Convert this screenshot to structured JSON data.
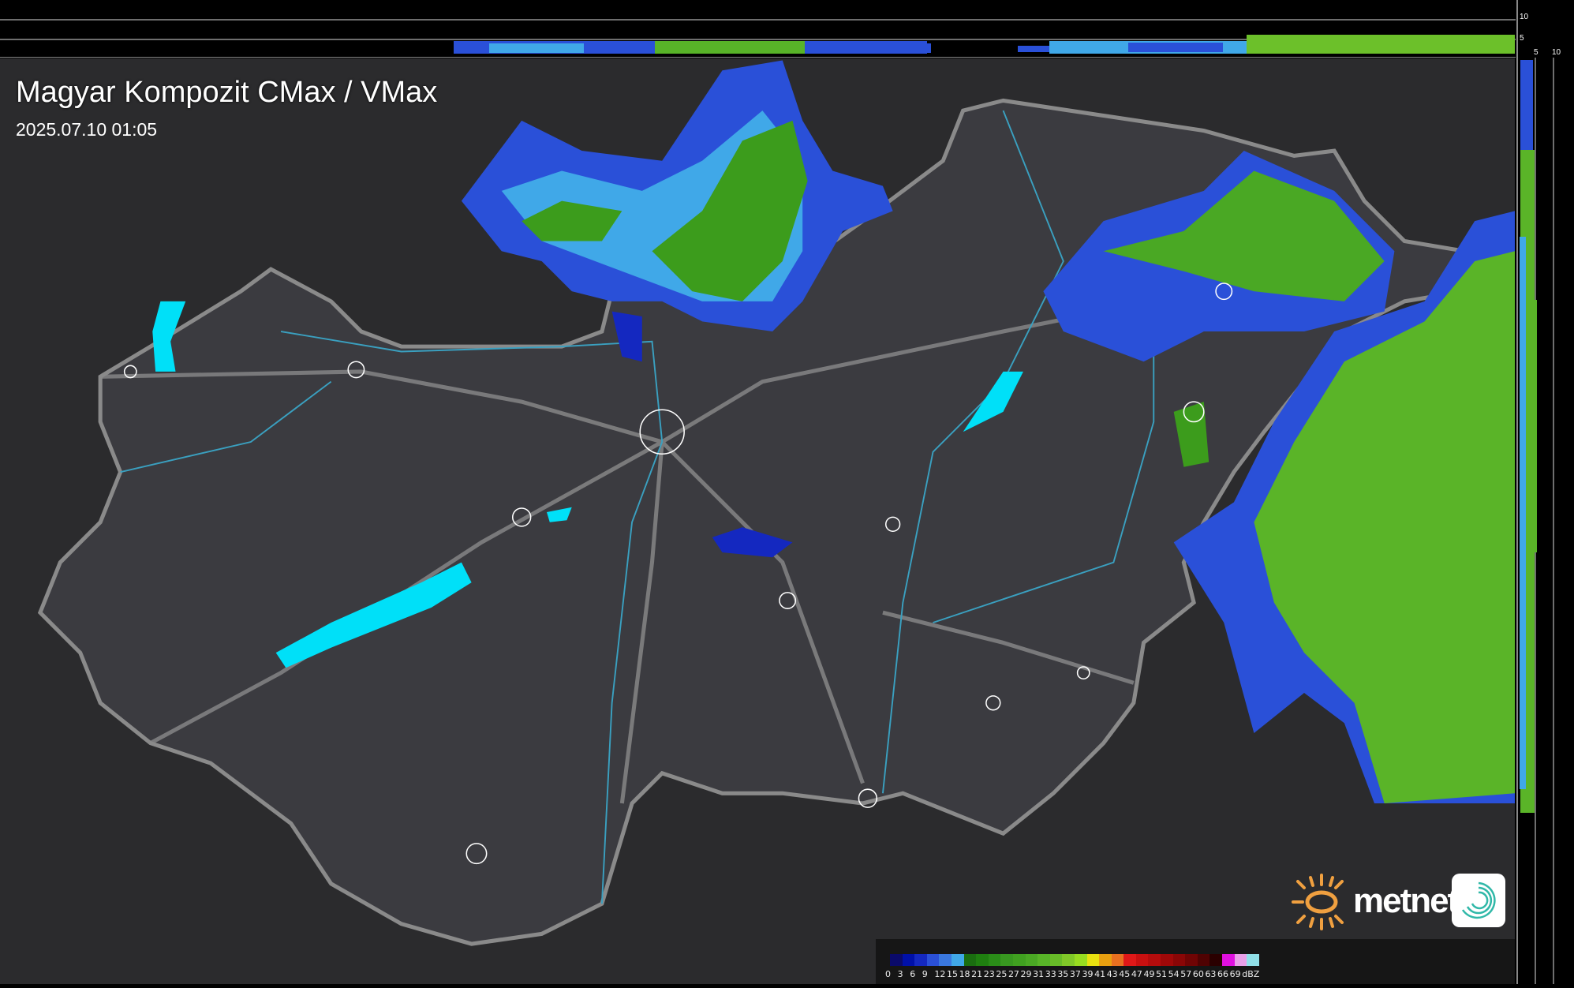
{
  "title": "Magyar Kompozit CMax / VMax",
  "timestamp": "2025.07.10 01:05",
  "side_scale": {
    "top_ticks": [
      "10",
      "5"
    ],
    "right_ticks": [
      "5",
      "10"
    ]
  },
  "logo": {
    "text": "metnet"
  },
  "legend": {
    "unit": "dBZ",
    "labels": [
      "0",
      "3",
      "6",
      "9",
      "12",
      "15",
      "18",
      "21",
      "23",
      "25",
      "27",
      "29",
      "31",
      "33",
      "35",
      "37",
      "39",
      "41",
      "43",
      "45",
      "47",
      "49",
      "51",
      "54",
      "57",
      "60",
      "63",
      "66",
      "69"
    ],
    "colors": [
      "#0a0a6a",
      "#0010a8",
      "#1428c0",
      "#2a50d8",
      "#3a78e0",
      "#40a8e8",
      "#1a6e10",
      "#1f8010",
      "#2a8c18",
      "#389820",
      "#40a020",
      "#4aa824",
      "#58b428",
      "#68bc28",
      "#80c828",
      "#98dc20",
      "#e8e010",
      "#e8a010",
      "#e87020",
      "#e01818",
      "#c81010",
      "#b40c0c",
      "#a00808",
      "#8a0606",
      "#700404",
      "#500202",
      "#2a0000",
      "#e010e0",
      "#e8a0e8",
      "#90e0e8"
    ]
  },
  "colors": {
    "background": "#2b2b2d",
    "country": "#3b3b40",
    "border": "#8a8a8a",
    "rivers": "#3aa0c0",
    "lakes": "#00e0f8",
    "echo_weak": "#2a50d8",
    "echo_mid": "#40a8e8",
    "echo_green": "#3c9c1c"
  }
}
